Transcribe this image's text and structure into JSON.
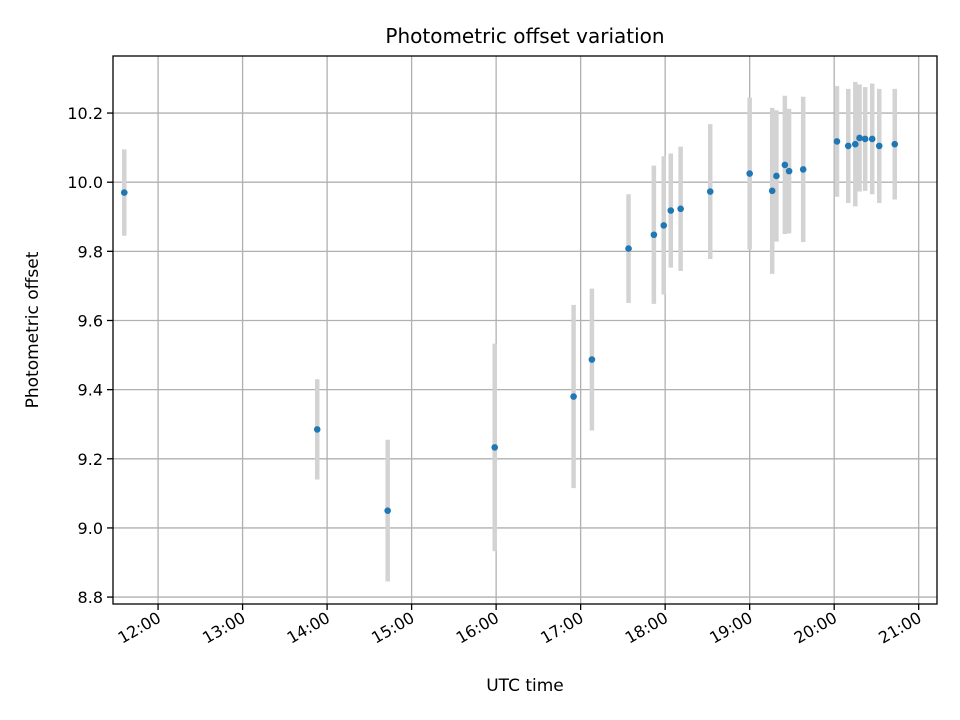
{
  "chart_data": {
    "type": "scatter",
    "title": "Photometric offset variation",
    "xlabel": "UTC time",
    "ylabel": "Photometric offset",
    "x_unit": "time-of-day",
    "xlim": [
      "11:28",
      "21:13"
    ],
    "ylim": [
      8.78,
      10.365
    ],
    "grid": true,
    "x_ticks": [
      "12:00",
      "13:00",
      "14:00",
      "15:00",
      "16:00",
      "17:00",
      "18:00",
      "19:00",
      "20:00",
      "21:00"
    ],
    "y_ticks": [
      "8.8",
      "9.0",
      "9.2",
      "9.4",
      "9.6",
      "9.8",
      "10.0",
      "10.2"
    ],
    "marker_color": "#1f77b4",
    "errorbar_color": "#d3d3d3",
    "points": [
      {
        "t": "11:36",
        "y": 9.97,
        "err": 0.125
      },
      {
        "t": "13:53",
        "y": 9.285,
        "err": 0.145
      },
      {
        "t": "14:43",
        "y": 9.05,
        "err": 0.205
      },
      {
        "t": "15:59",
        "y": 9.233,
        "err": 0.3
      },
      {
        "t": "16:55",
        "y": 9.38,
        "err": 0.265
      },
      {
        "t": "17:08",
        "y": 9.487,
        "err": 0.205
      },
      {
        "t": "17:34",
        "y": 9.808,
        "err": 0.157
      },
      {
        "t": "17:52",
        "y": 9.848,
        "err": 0.2
      },
      {
        "t": "17:59",
        "y": 9.875,
        "err": 0.2
      },
      {
        "t": "18:04",
        "y": 9.918,
        "err": 0.165
      },
      {
        "t": "18:11",
        "y": 9.923,
        "err": 0.18
      },
      {
        "t": "18:32",
        "y": 9.973,
        "err": 0.195
      },
      {
        "t": "19:00",
        "y": 10.025,
        "err": 0.22
      },
      {
        "t": "19:16",
        "y": 9.975,
        "err": 0.24
      },
      {
        "t": "19:19",
        "y": 10.018,
        "err": 0.19
      },
      {
        "t": "19:25",
        "y": 10.05,
        "err": 0.2
      },
      {
        "t": "19:28",
        "y": 10.032,
        "err": 0.18
      },
      {
        "t": "19:38",
        "y": 10.037,
        "err": 0.21
      },
      {
        "t": "20:02",
        "y": 10.118,
        "err": 0.16
      },
      {
        "t": "20:10",
        "y": 10.105,
        "err": 0.165
      },
      {
        "t": "20:15",
        "y": 10.11,
        "err": 0.18
      },
      {
        "t": "20:18",
        "y": 10.128,
        "err": 0.155
      },
      {
        "t": "20:22",
        "y": 10.125,
        "err": 0.15
      },
      {
        "t": "20:27",
        "y": 10.125,
        "err": 0.16
      },
      {
        "t": "20:32",
        "y": 10.105,
        "err": 0.165
      },
      {
        "t": "20:43",
        "y": 10.11,
        "err": 0.16
      }
    ]
  }
}
